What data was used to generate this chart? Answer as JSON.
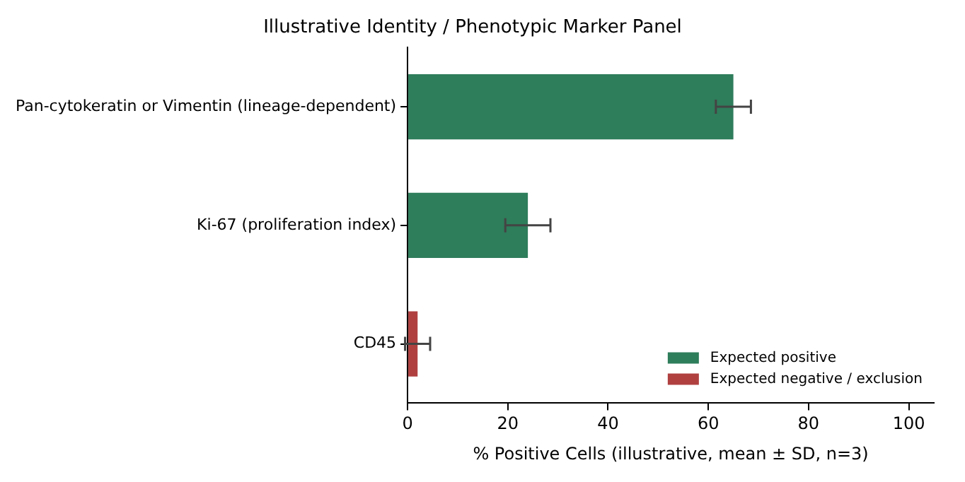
{
  "chart_data": {
    "type": "bar",
    "orientation": "horizontal",
    "title": "Illustrative Identity / Phenotypic Marker Panel",
    "xlabel": "% Positive Cells (illustrative, mean ± SD, n=3)",
    "categories": [
      "Pan-cytokeratin or Vimentin (lineage-dependent)",
      "Ki-67 (proliferation index)",
      "CD45"
    ],
    "series": [
      {
        "name": "Expected positive",
        "color": "#2e7d5b",
        "values": [
          65,
          24,
          null
        ],
        "errors": [
          3.5,
          4.5,
          null
        ]
      },
      {
        "name": "Expected negative / exclusion",
        "color": "#b04040",
        "values": [
          null,
          null,
          2
        ],
        "errors": [
          null,
          null,
          2.5
        ]
      }
    ],
    "xlim": [
      0,
      105
    ],
    "xticks": [
      0,
      20,
      40,
      60,
      80,
      100
    ],
    "grid": false,
    "legend": "bottom right"
  }
}
